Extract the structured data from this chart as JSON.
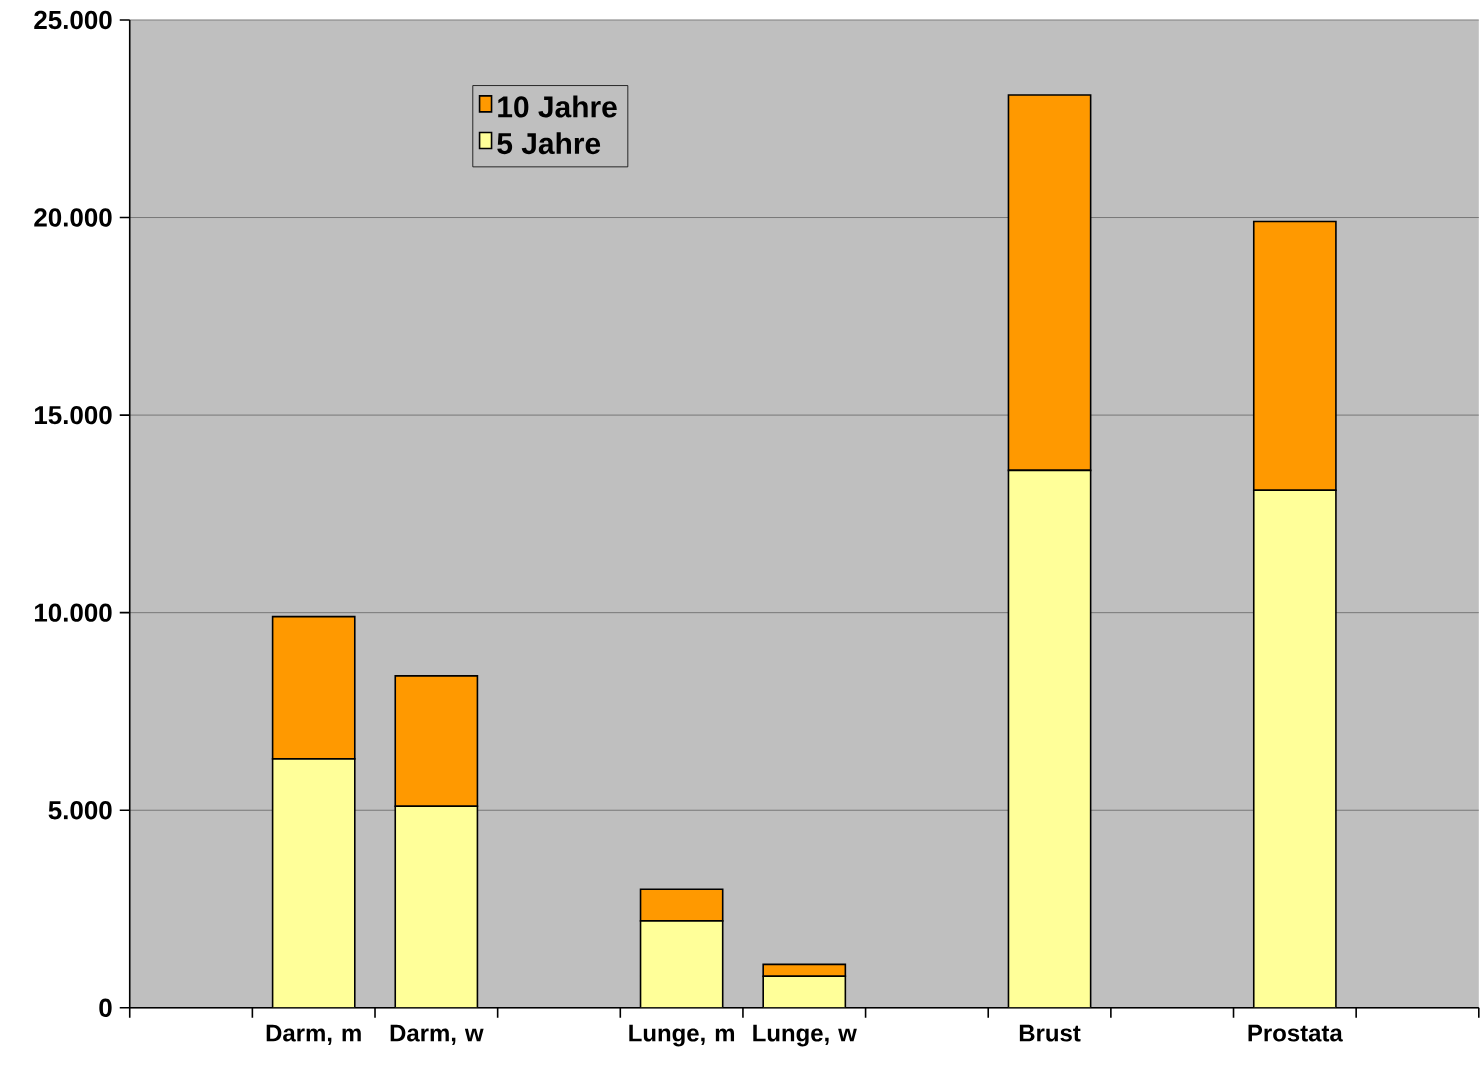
{
  "chart_data": {
    "type": "bar",
    "stacked": true,
    "categories": [
      null,
      "Darm, m",
      "Darm, w",
      null,
      "Lunge, m",
      "Lunge, w",
      null,
      "Brust",
      null,
      "Prostata",
      null
    ],
    "series": [
      {
        "name": "5 Jahre",
        "color": "#ffff99",
        "values": [
          null,
          6300,
          5100,
          null,
          2200,
          800,
          null,
          13600,
          null,
          13100,
          null
        ]
      },
      {
        "name": "10 Jahre",
        "color": "#ff9900",
        "values": [
          null,
          3600,
          3300,
          null,
          800,
          300,
          null,
          9500,
          null,
          6800,
          null
        ]
      }
    ],
    "ylim": [
      0,
      25000
    ],
    "yticks": [
      0,
      {
        "value": 5000,
        "label": "5.000"
      },
      {
        "value": 10000,
        "label": "10.000"
      },
      {
        "value": 15000,
        "label": "15.000"
      },
      {
        "value": 20000,
        "label": "20.000"
      },
      {
        "value": 25000,
        "label": "25.000"
      }
    ],
    "grid": "y",
    "legend": "top left"
  }
}
